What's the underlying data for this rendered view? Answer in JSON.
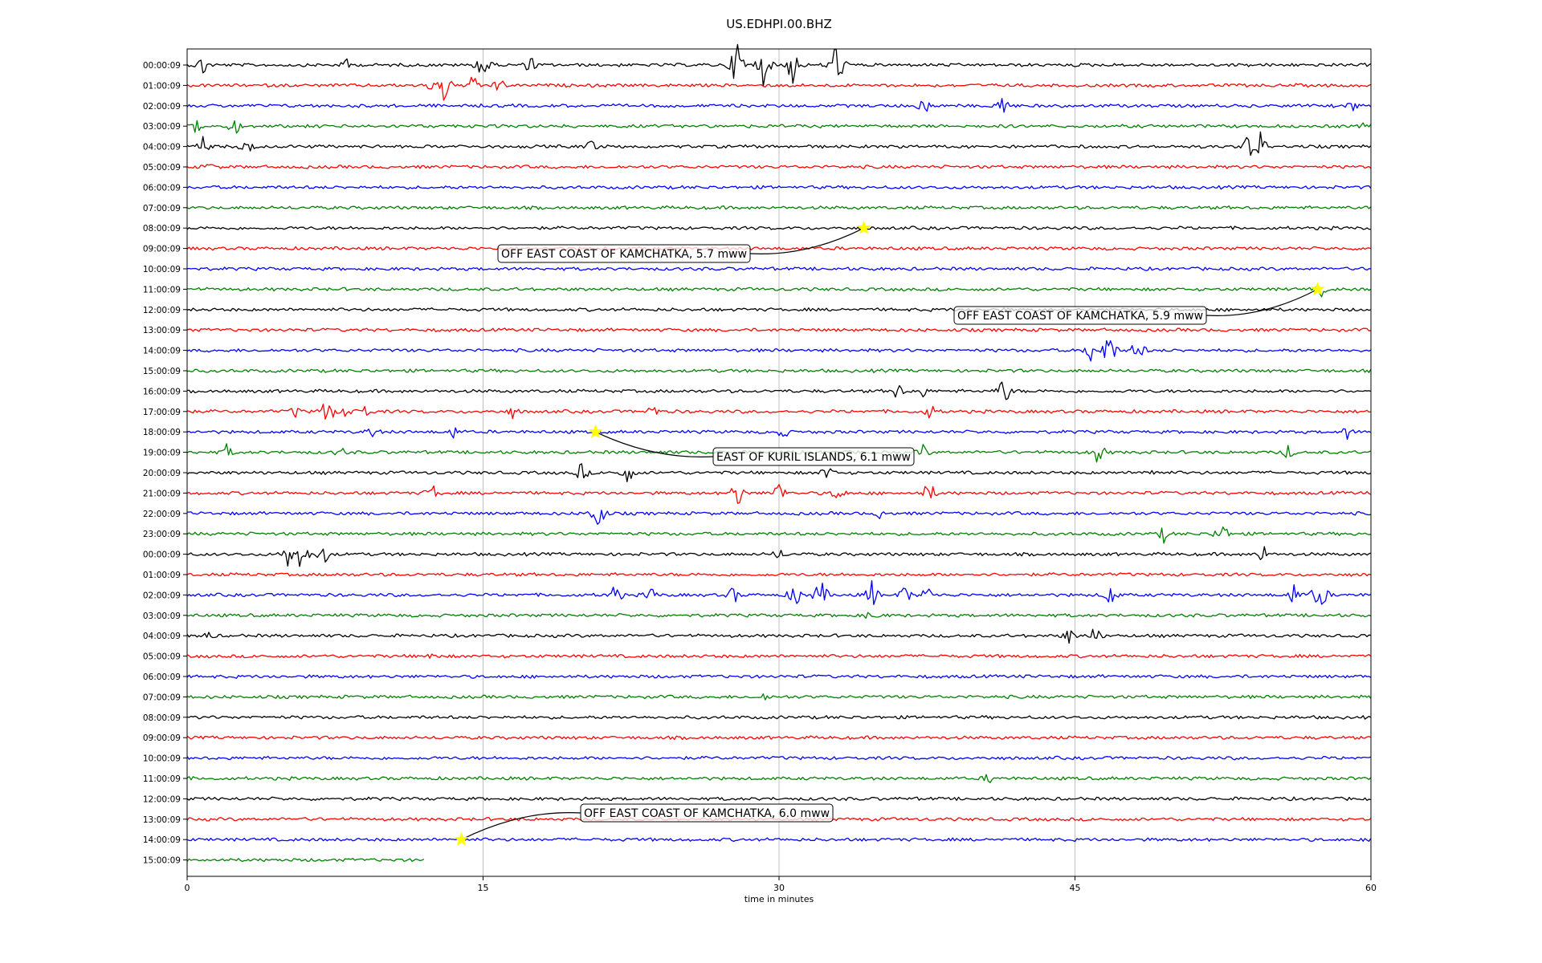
{
  "chart_data": {
    "type": "line",
    "title": "US.EDHPI.00.BHZ",
    "xlabel": "time in minutes",
    "ylabel": "",
    "xlim": [
      0,
      60
    ],
    "xticks": [
      0,
      15,
      30,
      45,
      60
    ],
    "grid": "vertical",
    "row_labels": [
      "00:00:09",
      "01:00:09",
      "02:00:09",
      "03:00:09",
      "04:00:09",
      "05:00:09",
      "06:00:09",
      "07:00:09",
      "08:00:09",
      "09:00:09",
      "10:00:09",
      "11:00:09",
      "12:00:09",
      "13:00:09",
      "14:00:09",
      "15:00:09",
      "16:00:09",
      "17:00:09",
      "18:00:09",
      "19:00:09",
      "20:00:09",
      "21:00:09",
      "22:00:09",
      "23:00:09",
      "00:00:09",
      "01:00:09",
      "02:00:09",
      "03:00:09",
      "04:00:09",
      "05:00:09",
      "06:00:09",
      "07:00:09",
      "08:00:09",
      "09:00:09",
      "10:00:09",
      "11:00:09",
      "12:00:09",
      "13:00:09",
      "14:00:09",
      "15:00:09"
    ],
    "trace_colors": [
      "#000000",
      "#ff0000",
      "#0000ff",
      "#008000"
    ],
    "last_row_end_minute": 12,
    "events": [
      {
        "row": 8,
        "minute": 34.3,
        "label": "OFF EAST COAST OF KAMCHATKA, 5.7 mww"
      },
      {
        "row": 11,
        "minute": 57.3,
        "label": "OFF EAST COAST OF KAMCHATKA, 5.9 mww"
      },
      {
        "row": 18,
        "minute": 20.7,
        "label": "EAST OF KURIL ISLANDS, 6.1 mww"
      },
      {
        "row": 38,
        "minute": 13.9,
        "label": "OFF EAST COAST OF KAMCHATKA, 6.0 mww"
      }
    ],
    "marker_color": "#ffff00",
    "bursts": [
      {
        "row": 0,
        "minute": 0.8,
        "amp": 1.0
      },
      {
        "row": 0,
        "minute": 8.1,
        "amp": 0.6
      },
      {
        "row": 0,
        "minute": 14.9,
        "amp": 0.9
      },
      {
        "row": 0,
        "minute": 15.1,
        "amp": 1.3
      },
      {
        "row": 0,
        "minute": 17.4,
        "amp": 0.8
      },
      {
        "row": 0,
        "minute": 27.9,
        "amp": 2.2
      },
      {
        "row": 0,
        "minute": 29.2,
        "amp": 1.6
      },
      {
        "row": 0,
        "minute": 30.7,
        "amp": 1.7
      },
      {
        "row": 0,
        "minute": 32.9,
        "amp": 2.2
      },
      {
        "row": 1,
        "minute": 12.5,
        "amp": 0.9
      },
      {
        "row": 1,
        "minute": 13.0,
        "amp": 1.5
      },
      {
        "row": 1,
        "minute": 14.5,
        "amp": 0.9
      },
      {
        "row": 1,
        "minute": 15.8,
        "amp": 0.7
      },
      {
        "row": 2,
        "minute": 37.4,
        "amp": 1.0
      },
      {
        "row": 2,
        "minute": 41.3,
        "amp": 1.1
      },
      {
        "row": 2,
        "minute": 59.1,
        "amp": 0.6
      },
      {
        "row": 3,
        "minute": 0.5,
        "amp": 0.9
      },
      {
        "row": 3,
        "minute": 2.4,
        "amp": 0.8
      },
      {
        "row": 3,
        "minute": 59.8,
        "amp": 0.7
      },
      {
        "row": 4,
        "minute": 0.8,
        "amp": 0.8
      },
      {
        "row": 4,
        "minute": 3.0,
        "amp": 0.9
      },
      {
        "row": 4,
        "minute": 20.5,
        "amp": 0.7
      },
      {
        "row": 4,
        "minute": 53.9,
        "amp": 1.7
      },
      {
        "row": 4,
        "minute": 54.4,
        "amp": 1.2
      },
      {
        "row": 5,
        "minute": 1.1,
        "amp": 0.5
      },
      {
        "row": 11,
        "minute": 57.5,
        "amp": 0.6
      },
      {
        "row": 14,
        "minute": 45.8,
        "amp": 1.0
      },
      {
        "row": 14,
        "minute": 46.7,
        "amp": 1.8
      },
      {
        "row": 14,
        "minute": 48.2,
        "amp": 1.2
      },
      {
        "row": 16,
        "minute": 36.0,
        "amp": 0.8
      },
      {
        "row": 16,
        "minute": 37.2,
        "amp": 0.8
      },
      {
        "row": 16,
        "minute": 41.4,
        "amp": 1.3
      },
      {
        "row": 17,
        "minute": 5.5,
        "amp": 0.6
      },
      {
        "row": 17,
        "minute": 7.1,
        "amp": 1.5
      },
      {
        "row": 17,
        "minute": 8.2,
        "amp": 0.8
      },
      {
        "row": 17,
        "minute": 9.0,
        "amp": 0.7
      },
      {
        "row": 17,
        "minute": 16.5,
        "amp": 0.6
      },
      {
        "row": 17,
        "minute": 23.6,
        "amp": 0.7
      },
      {
        "row": 17,
        "minute": 37.7,
        "amp": 0.8
      },
      {
        "row": 18,
        "minute": 9.4,
        "amp": 0.7
      },
      {
        "row": 18,
        "minute": 13.5,
        "amp": 0.6
      },
      {
        "row": 18,
        "minute": 30.2,
        "amp": 0.7
      },
      {
        "row": 18,
        "minute": 58.8,
        "amp": 0.6
      },
      {
        "row": 19,
        "minute": 2.0,
        "amp": 0.7
      },
      {
        "row": 19,
        "minute": 7.8,
        "amp": 0.6
      },
      {
        "row": 19,
        "minute": 37.3,
        "amp": 0.7
      },
      {
        "row": 19,
        "minute": 46.2,
        "amp": 1.1
      },
      {
        "row": 19,
        "minute": 55.8,
        "amp": 0.7
      },
      {
        "row": 20,
        "minute": 20.0,
        "amp": 0.9
      },
      {
        "row": 20,
        "minute": 22.3,
        "amp": 1.0
      },
      {
        "row": 20,
        "minute": 32.4,
        "amp": 0.8
      },
      {
        "row": 20,
        "minute": 48.8,
        "amp": 0.6
      },
      {
        "row": 21,
        "minute": 12.4,
        "amp": 0.9
      },
      {
        "row": 21,
        "minute": 27.9,
        "amp": 1.2
      },
      {
        "row": 21,
        "minute": 30.0,
        "amp": 1.1
      },
      {
        "row": 21,
        "minute": 33.0,
        "amp": 0.9
      },
      {
        "row": 21,
        "minute": 37.6,
        "amp": 1.1
      },
      {
        "row": 22,
        "minute": 20.8,
        "amp": 1.6
      },
      {
        "row": 22,
        "minute": 35.2,
        "amp": 0.6
      },
      {
        "row": 23,
        "minute": 49.5,
        "amp": 0.7
      },
      {
        "row": 23,
        "minute": 52.4,
        "amp": 1.2
      },
      {
        "row": 24,
        "minute": 5.1,
        "amp": 1.1
      },
      {
        "row": 24,
        "minute": 5.8,
        "amp": 1.4
      },
      {
        "row": 24,
        "minute": 6.9,
        "amp": 0.9
      },
      {
        "row": 24,
        "minute": 30.0,
        "amp": 0.6
      },
      {
        "row": 24,
        "minute": 54.5,
        "amp": 0.9
      },
      {
        "row": 26,
        "minute": 21.7,
        "amp": 1.0
      },
      {
        "row": 26,
        "minute": 23.5,
        "amp": 0.8
      },
      {
        "row": 26,
        "minute": 27.7,
        "amp": 0.8
      },
      {
        "row": 26,
        "minute": 30.8,
        "amp": 1.2
      },
      {
        "row": 26,
        "minute": 32.1,
        "amp": 1.4
      },
      {
        "row": 26,
        "minute": 34.7,
        "amp": 1.2
      },
      {
        "row": 26,
        "minute": 36.4,
        "amp": 0.9
      },
      {
        "row": 26,
        "minute": 37.5,
        "amp": 0.9
      },
      {
        "row": 26,
        "minute": 46.8,
        "amp": 1.1
      },
      {
        "row": 26,
        "minute": 56.1,
        "amp": 1.0
      },
      {
        "row": 26,
        "minute": 57.4,
        "amp": 1.7
      },
      {
        "row": 27,
        "minute": 34.7,
        "amp": 0.7
      },
      {
        "row": 28,
        "minute": 1.1,
        "amp": 0.5
      },
      {
        "row": 28,
        "minute": 44.7,
        "amp": 0.8
      },
      {
        "row": 28,
        "minute": 46.0,
        "amp": 0.9
      },
      {
        "row": 29,
        "minute": 12.4,
        "amp": 0.5
      },
      {
        "row": 31,
        "minute": 29.3,
        "amp": 0.5
      },
      {
        "row": 35,
        "minute": 40.6,
        "amp": 0.5
      }
    ]
  }
}
